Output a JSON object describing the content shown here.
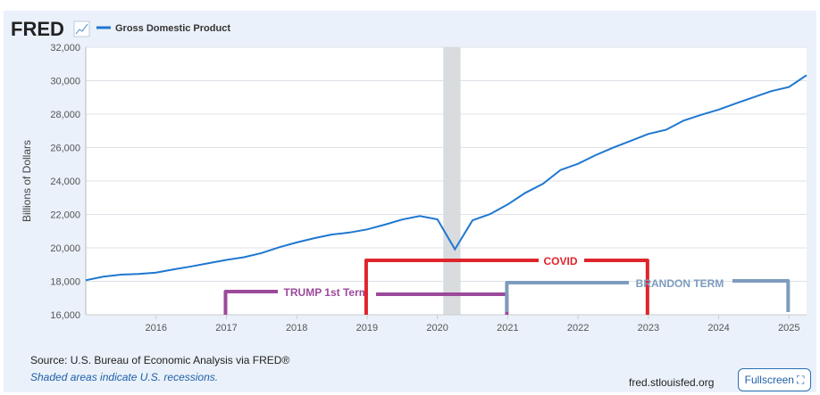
{
  "brand": {
    "logo": "FRED",
    "icon": "line-chart-icon"
  },
  "chart_data": {
    "type": "line",
    "series": [
      {
        "name": "Gross Domestic Product",
        "color": "#1f77d0",
        "x": [
          "2015-01-01",
          "2015-04-01",
          "2015-07-01",
          "2015-10-01",
          "2016-01-01",
          "2016-04-01",
          "2016-07-01",
          "2016-10-01",
          "2017-01-01",
          "2017-04-01",
          "2017-07-01",
          "2017-10-01",
          "2018-01-01",
          "2018-04-01",
          "2018-07-01",
          "2018-10-01",
          "2019-01-01",
          "2019-04-01",
          "2019-07-01",
          "2019-10-01",
          "2020-01-01",
          "2020-04-01",
          "2020-07-01",
          "2020-10-01",
          "2021-01-01",
          "2021-04-01",
          "2021-07-01",
          "2021-10-01",
          "2022-01-01",
          "2022-04-01",
          "2022-07-01",
          "2022-10-01",
          "2023-01-01",
          "2023-04-01",
          "2023-07-01",
          "2023-10-01",
          "2024-01-01",
          "2024-04-01",
          "2024-07-01",
          "2024-10-01",
          "2025-01-01",
          "2025-04-01"
        ],
        "values": [
          18063,
          18279,
          18401,
          18435,
          18525,
          18712,
          18892,
          19089,
          19280,
          19438,
          19692,
          20038,
          20328,
          20580,
          20798,
          20918,
          21105,
          21385,
          21695,
          21903,
          21707,
          19913,
          21648,
          22024,
          22600,
          23292,
          23829,
          24654,
          25029,
          25544,
          25995,
          26408,
          26814,
          27063,
          27610,
          27957,
          28270,
          28652,
          29017,
          29375,
          29620,
          30331
        ]
      }
    ],
    "ylabel": "Billions of Dollars",
    "ylim": [
      16000,
      32000
    ],
    "yticks": [
      "16,000",
      "18,000",
      "20,000",
      "22,000",
      "24,000",
      "26,000",
      "28,000",
      "30,000",
      "32,000"
    ],
    "xticks": [
      "2016",
      "2017",
      "2018",
      "2019",
      "2020",
      "2021",
      "2022",
      "2023",
      "2024",
      "2025"
    ],
    "xlim": [
      "2015-01-01",
      "2025-04-01"
    ],
    "grid": true,
    "legend": "top-left",
    "recessions": [
      {
        "start": "2020-02-01",
        "end": "2020-04-30"
      }
    ],
    "annotations": [
      {
        "label": "TRUMP 1st Term",
        "start": "2017",
        "end": "2021",
        "color": "#9b4a9b"
      },
      {
        "label": "COVID",
        "start": "2019",
        "end": "2023",
        "color": "#e0242b"
      },
      {
        "label": "BRANDON TERM",
        "start": "2021",
        "end": "2025",
        "color": "#7d9cbd"
      }
    ]
  },
  "footer": {
    "source": "Source: U.S. Bureau of Economic Analysis via FRED®",
    "note": "Shaded areas indicate U.S. recessions.",
    "site": "fred.stlouisfed.org",
    "fullscreen": "Fullscreen"
  }
}
